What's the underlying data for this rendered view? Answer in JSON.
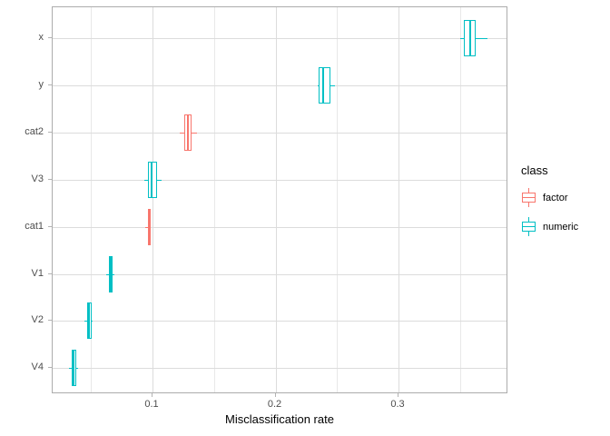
{
  "chart_data": {
    "type": "boxplot",
    "orientation": "horizontal",
    "title": "",
    "xlabel": "Misclassification rate",
    "ylabel": "",
    "xlim": [
      0.0188,
      0.3893
    ],
    "x_major_ticks": [
      {
        "value": 0.1,
        "label": "0.1"
      },
      {
        "value": 0.2,
        "label": "0.2"
      },
      {
        "value": 0.3,
        "label": "0.3"
      }
    ],
    "x_minor_gridlines": [
      0.05,
      0.15,
      0.25,
      0.35
    ],
    "grid": true,
    "categories_top_to_bottom": [
      "x",
      "y",
      "cat2",
      "V3",
      "cat1",
      "V1",
      "V2",
      "V4"
    ],
    "series": [
      {
        "category": "x",
        "class": "numeric",
        "whisker_lo": 0.35,
        "q1": 0.353,
        "median": 0.358,
        "q3": 0.363,
        "whisker_hi": 0.372
      },
      {
        "category": "y",
        "class": "numeric",
        "whisker_lo": 0.234,
        "q1": 0.235,
        "median": 0.239,
        "q3": 0.245,
        "whisker_hi": 0.248
      },
      {
        "category": "cat2",
        "class": "factor",
        "whisker_lo": 0.122,
        "q1": 0.126,
        "median": 0.129,
        "q3": 0.132,
        "whisker_hi": 0.136
      },
      {
        "category": "V3",
        "class": "numeric",
        "whisker_lo": 0.093,
        "q1": 0.096,
        "median": 0.099,
        "q3": 0.104,
        "whisker_hi": 0.107
      },
      {
        "category": "cat1",
        "class": "factor",
        "whisker_lo": 0.094,
        "q1": 0.096,
        "median": 0.097,
        "q3": 0.0985,
        "whisker_hi": 0.0985
      },
      {
        "category": "V1",
        "class": "numeric",
        "whisker_lo": 0.062,
        "q1": 0.0645,
        "median": 0.066,
        "q3": 0.0675,
        "whisker_hi": 0.069
      },
      {
        "category": "V2",
        "class": "numeric",
        "whisker_lo": 0.045,
        "q1": 0.047,
        "median": 0.048,
        "q3": 0.0505,
        "whisker_hi": 0.0515
      },
      {
        "category": "V4",
        "class": "numeric",
        "whisker_lo": 0.032,
        "q1": 0.034,
        "median": 0.036,
        "q3": 0.038,
        "whisker_hi": 0.0395
      }
    ],
    "legend": {
      "title": "class",
      "position": "right",
      "entries": [
        {
          "label": "factor",
          "color": "#F8766D"
        },
        {
          "label": "numeric",
          "color": "#00BFC4"
        }
      ]
    },
    "class_colors": {
      "factor": "#F8766D",
      "numeric": "#00BFC4"
    }
  }
}
